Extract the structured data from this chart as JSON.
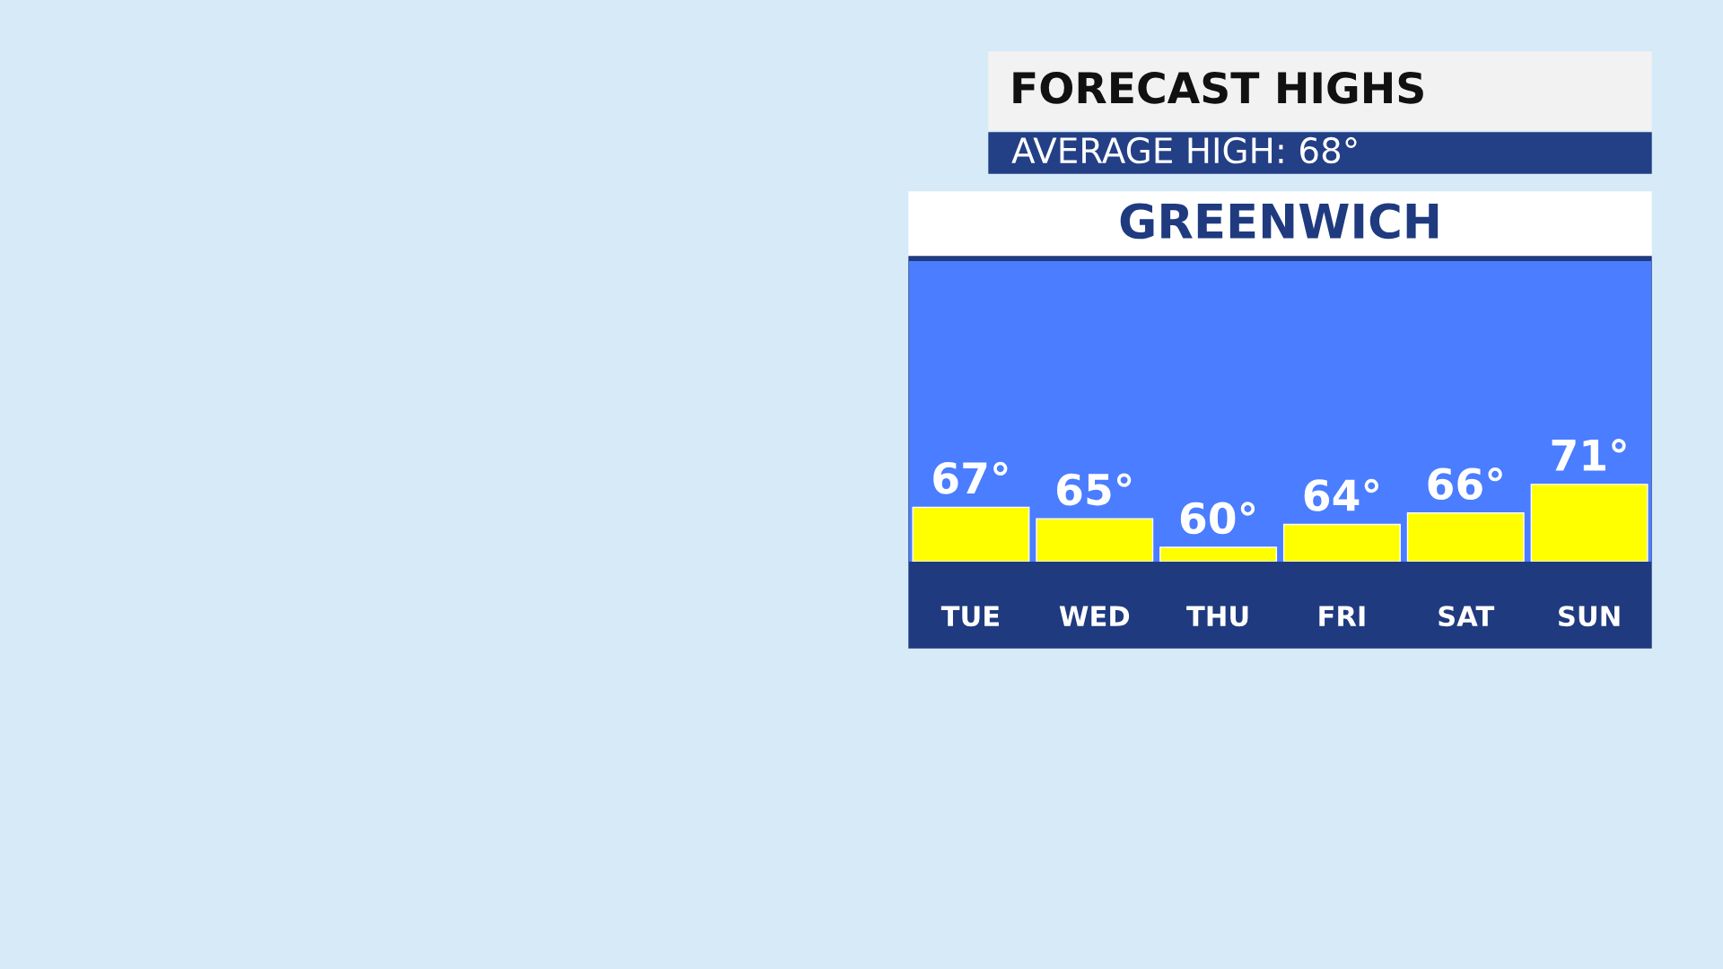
{
  "chart_data": {
    "type": "bar",
    "title": "FORECAST HIGHS",
    "subtitle": "AVERAGE HIGH: 68°",
    "annotations": [
      "GREENWICH"
    ],
    "categories": [
      "TUE",
      "WED",
      "THU",
      "FRI",
      "SAT",
      "SUN"
    ],
    "values": [
      67,
      65,
      60,
      64,
      66,
      71
    ],
    "value_labels": [
      "67°",
      "65°",
      "60°",
      "64°",
      "66°",
      "71°"
    ],
    "color": "#ffff00",
    "ylim": [
      57.5,
      110
    ],
    "tick_labels": "x",
    "grid": false,
    "legend": false
  }
}
